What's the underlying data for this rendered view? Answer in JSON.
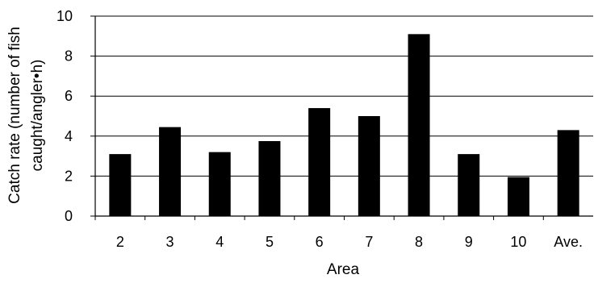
{
  "chart_data": {
    "type": "bar",
    "title": "",
    "xlabel": "Area",
    "ylabel_line1": "Catch rate (number of fish",
    "ylabel_line2": "caught/angler•h)",
    "categories": [
      "2",
      "3",
      "4",
      "5",
      "6",
      "7",
      "8",
      "9",
      "10",
      "Ave."
    ],
    "values": [
      3.1,
      4.45,
      3.2,
      3.75,
      5.4,
      5.0,
      9.1,
      3.1,
      1.95,
      4.3
    ],
    "ylim": [
      0,
      10
    ],
    "yticks": [
      "0",
      "2",
      "4",
      "6",
      "8",
      "10"
    ],
    "grid": true,
    "legend": "none",
    "bar_color": "#000000",
    "grid_color": "#000000"
  }
}
